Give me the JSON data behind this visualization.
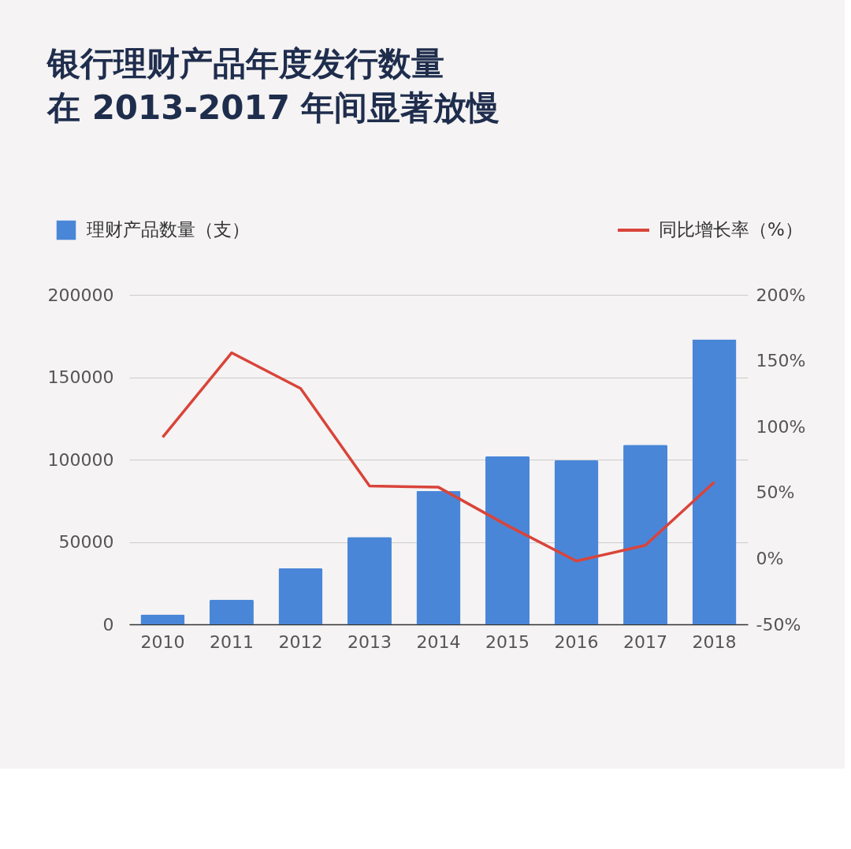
{
  "chart_data": {
    "type": "bar",
    "title": "银行理财产品年度发行数量",
    "subtitle": "在 2013-2017 年间显著放慢",
    "categories": [
      "2010",
      "2011",
      "2012",
      "2013",
      "2014",
      "2015",
      "2016",
      "2017",
      "2018"
    ],
    "series": [
      {
        "name": "理财产品数量（支）",
        "color": "#4a86d8",
        "values": [
          6000,
          15000,
          34000,
          53000,
          81000,
          102000,
          99500,
          109000,
          173000
        ]
      },
      {
        "name": "同比增长率（%）",
        "type": "line",
        "axis": "y2",
        "color": "#d9443a",
        "values": [
          92,
          156,
          129,
          55,
          54,
          25,
          -2,
          10,
          58
        ]
      }
    ],
    "ylim": [
      0,
      200000
    ],
    "yticks": [
      0,
      50000,
      100000,
      150000,
      200000
    ],
    "y2lim": [
      -50,
      200
    ],
    "y2ticks": [
      {
        "value": -50,
        "label": "-50%"
      },
      {
        "value": 0,
        "label": "0%"
      },
      {
        "value": 50,
        "label": "50%"
      },
      {
        "value": 100,
        "label": "100%"
      },
      {
        "value": 150,
        "label": "150%"
      },
      {
        "value": 200,
        "label": "200%"
      }
    ],
    "grid": "y",
    "legend": "top"
  }
}
